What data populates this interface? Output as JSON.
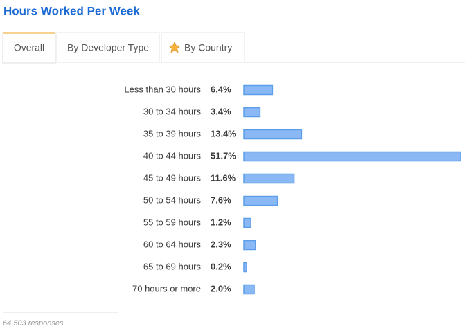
{
  "title": "Hours Worked Per Week",
  "tabs": [
    "Overall",
    "By Developer Type",
    "By Country"
  ],
  "chart_data": {
    "type": "bar",
    "categories": [
      "Less than 30 hours",
      "30 to 34 hours",
      "35 to 39 hours",
      "40 to 44 hours",
      "45 to 49 hours",
      "50 to 54 hours",
      "55 to 59 hours",
      "60 to 64 hours",
      "65 to 69 hours",
      "70 hours or more"
    ],
    "values": [
      6.4,
      3.4,
      13.4,
      51.7,
      11.6,
      7.6,
      1.2,
      2.3,
      0.2,
      2.0
    ],
    "value_labels": [
      "6.4%",
      "3.4%",
      "13.4%",
      "51.7%",
      "11.6%",
      "7.6%",
      "1.2%",
      "2.3%",
      "0.2%",
      "2.0%"
    ],
    "color": "#8ab8f5"
  },
  "footer": "64,503 responses"
}
